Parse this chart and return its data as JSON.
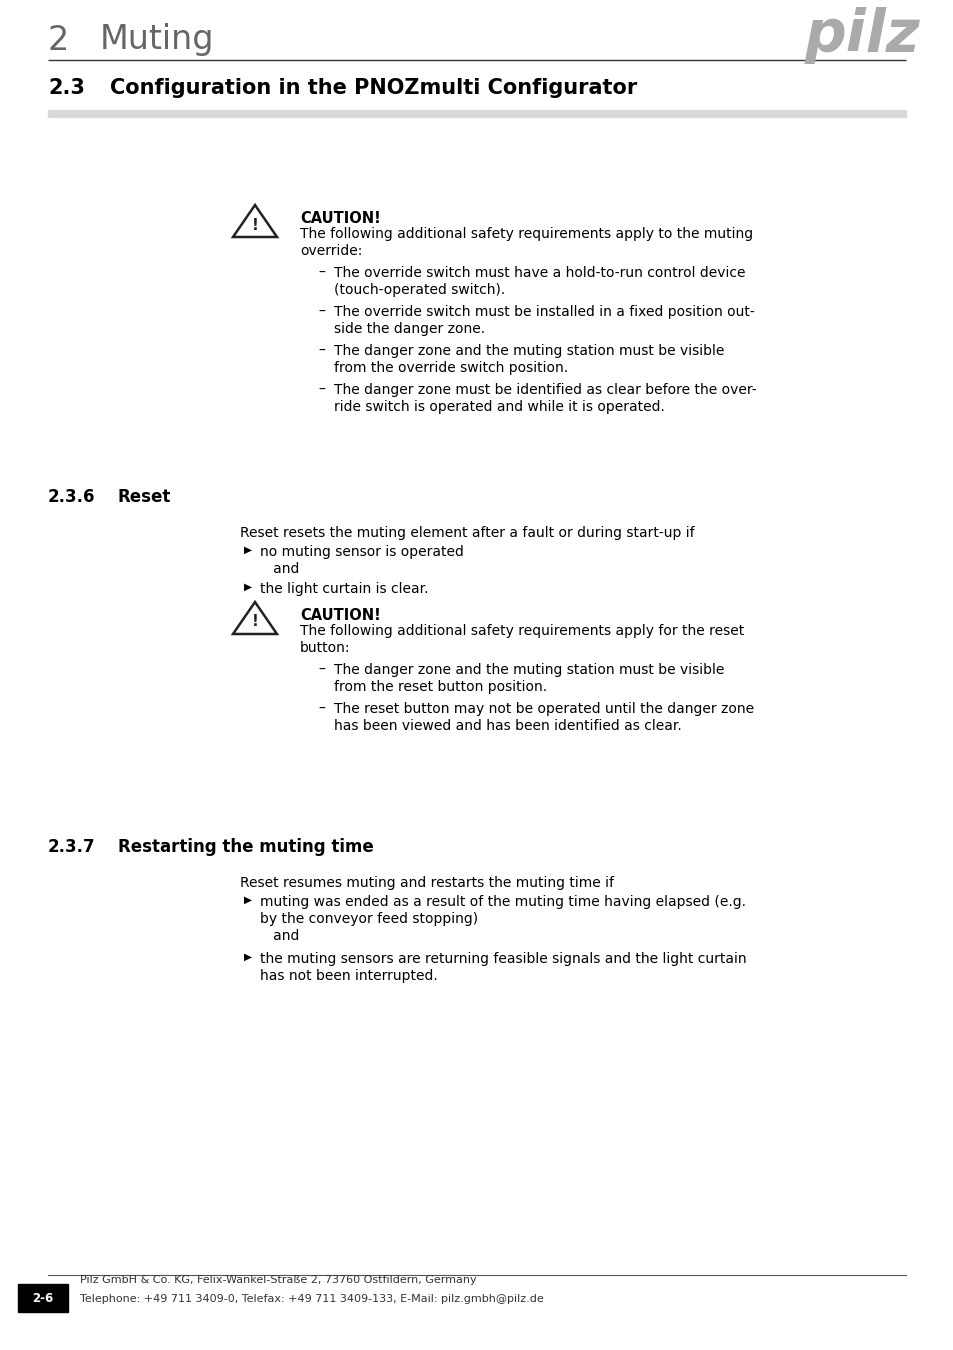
{
  "page_bg": "#ffffff",
  "header_num": "2",
  "header_title": "Muting",
  "header_line_color": "#444444",
  "section_num": "2.3",
  "section_title": "Configuration in the PNOZmulti Configurator",
  "gray_bar_color": "#d8d8d8",
  "subsection1_num": "2.3.6",
  "subsection1_title": "Reset",
  "subsection1_intro": "Reset resets the muting element after a fault or during start-up if",
  "subsection1_bullet1_line1": "no muting sensor is operated",
  "subsection1_bullet1_line2": "   and",
  "subsection1_bullet2": "the light curtain is clear.",
  "caution1_title": "CAUTION!",
  "caution1_line1": "The following additional safety requirements apply to the muting",
  "caution1_line2": "override:",
  "caution1_bullets": [
    [
      "The override switch must have a hold-to-run control device",
      "(touch-operated switch)."
    ],
    [
      "The override switch must be installed in a fixed position out-",
      "side the danger zone."
    ],
    [
      "The danger zone and the muting station must be visible",
      "from the override switch position."
    ],
    [
      "The danger zone must be identified as clear before the over-",
      "ride switch is operated and while it is operated."
    ]
  ],
  "caution2_title": "CAUTION!",
  "caution2_line1": "The following additional safety requirements apply for the reset",
  "caution2_line2": "button:",
  "caution2_bullets": [
    [
      "The danger zone and the muting station must be visible",
      "from the reset button position."
    ],
    [
      "The reset button may not be operated until the danger zone",
      "has been viewed and has been identified as clear."
    ]
  ],
  "subsection2_num": "2.3.7",
  "subsection2_title": "Restarting the muting time",
  "subsection2_intro": "Reset resumes muting and restarts the muting time if",
  "subsection2_bullet1_lines": [
    "muting was ended as a result of the muting time having elapsed (e.g.",
    "by the conveyor feed stopping)",
    "   and"
  ],
  "subsection2_bullet2_lines": [
    "the muting sensors are returning feasible signals and the light curtain",
    "has not been interrupted."
  ],
  "footer_page": "2-6",
  "footer_company": "Pilz GmbH & Co. KG, Felix-Wankel-Straße 2, 73760 Ostfildern, Germany",
  "footer_contact": "Telephone: +49 711 3409-0, Telefax: +49 711 3409-133, E-Mail: pilz.gmbh@pilz.de"
}
